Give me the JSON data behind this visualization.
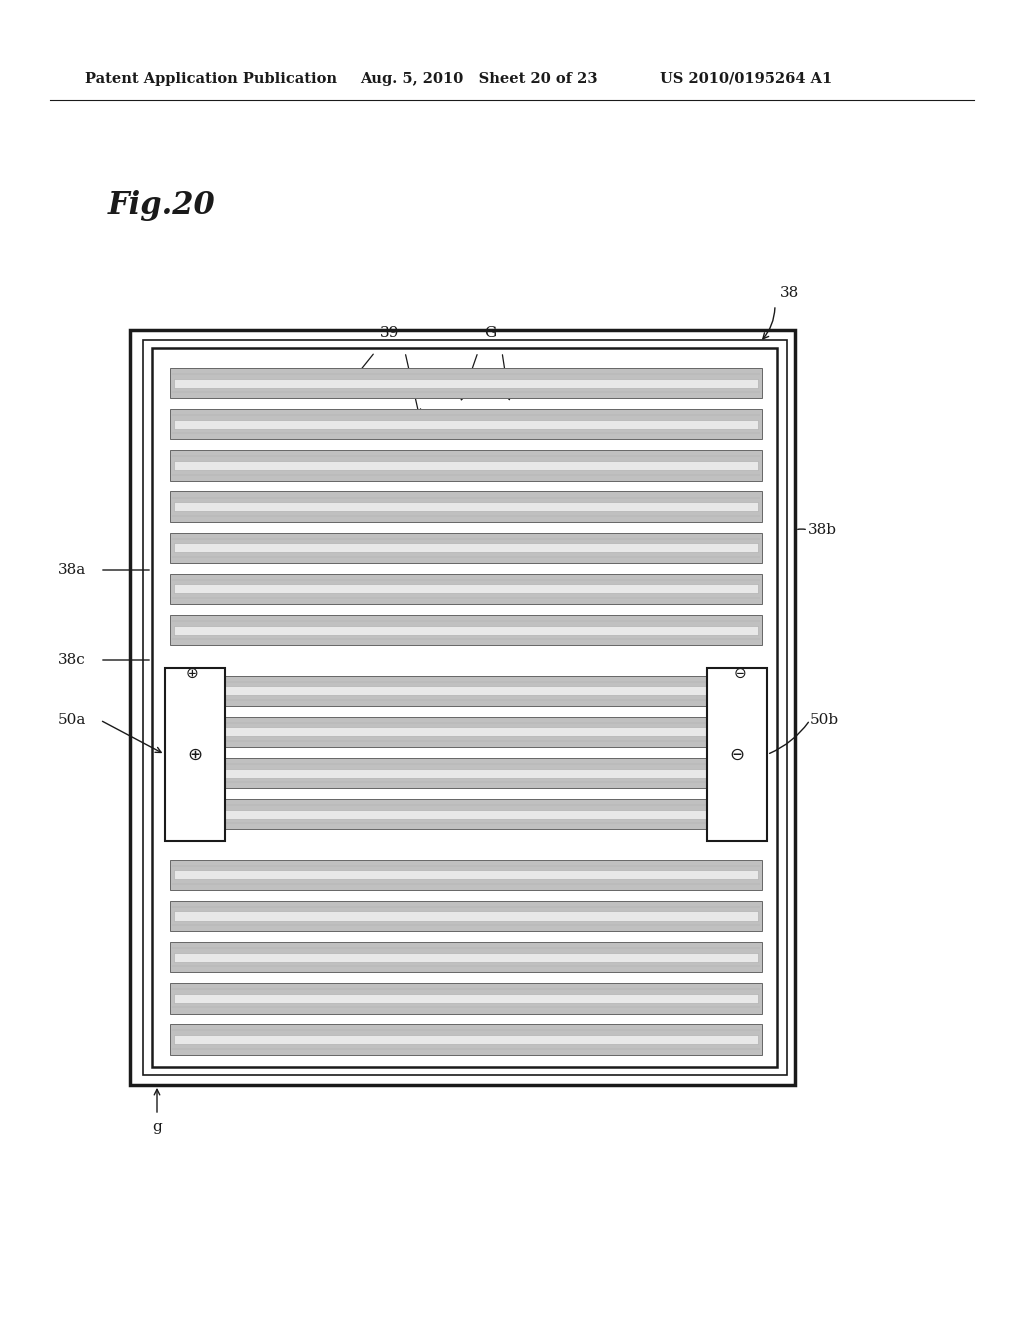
{
  "header_left": "Patent Application Publication",
  "header_mid": "Aug. 5, 2010   Sheet 20 of 23",
  "header_right": "US 2010/0195264 A1",
  "title": "Fig.20",
  "bg_color": "#ffffff",
  "label_38": "38",
  "label_38a": "38a",
  "label_38b": "38b",
  "label_38c": "38c",
  "label_39": "39",
  "label_G": "G",
  "label_50a": "50a",
  "label_50b": "50b",
  "label_g": "g",
  "stripe_gray": "#c0c0c0",
  "stripe_dark": "#888888",
  "stripe_light": "#e8e8e8",
  "line_color": "#1a1a1a"
}
